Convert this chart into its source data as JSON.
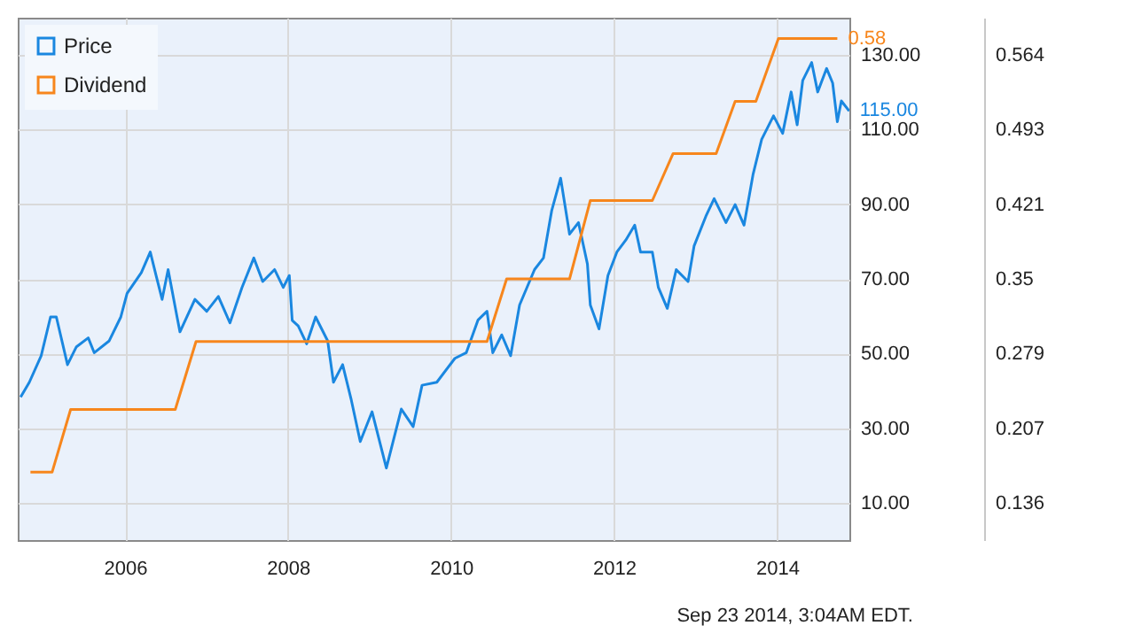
{
  "chart_data": {
    "type": "line",
    "xlim": [
      "2004-09-07",
      "2014-11-21"
    ],
    "xticks": [
      "2006",
      "2008",
      "2010",
      "2012",
      "2014"
    ],
    "ylim": [
      0,
      140
    ],
    "yticks": [
      {
        "value": 10,
        "label": "10.00"
      },
      {
        "value": 30,
        "label": "30.00"
      },
      {
        "value": 50,
        "label": "50.00"
      },
      {
        "value": 70,
        "label": "70.00"
      },
      {
        "value": 90,
        "label": "90.00"
      },
      {
        "value": 110,
        "label": "110.00"
      },
      {
        "value": 130,
        "label": "130.00"
      }
    ],
    "y2lim": [
      0.1,
      0.6
    ],
    "y2ticks": [
      0.136,
      0.207,
      0.279,
      0.35,
      0.421,
      0.493,
      0.564
    ],
    "grid": true,
    "legend": "top left",
    "annotations": [
      "Sep 23 2014, 3:04AM EDT."
    ],
    "series": [
      {
        "name": "Price",
        "color": "#1a87e0",
        "x": [
          "2004-09-20",
          "2004-10-29",
          "2004-12-21",
          "2005-02-01",
          "2005-02-27",
          "2005-04-18",
          "2005-05-28",
          "2005-07-20",
          "2005-08-16",
          "2005-10-22",
          "2005-12-13",
          "2006-01-10",
          "2006-03-15",
          "2006-04-24",
          "2006-05-20",
          "2006-06-16",
          "2006-07-13",
          "2006-08-22",
          "2006-09-04",
          "2006-11-10",
          "2007-01-02",
          "2007-02-23",
          "2007-04-16",
          "2007-06-09",
          "2007-08-01",
          "2007-09-10",
          "2007-11-02",
          "2007-12-11",
          "2008-01-07",
          "2008-01-20",
          "2008-02-16",
          "2008-03-25",
          "2008-05-04",
          "2008-06-27",
          "2008-07-23",
          "2008-09-02",
          "2008-10-11",
          "2008-11-20",
          "2009-01-12",
          "2009-03-17",
          "2009-05-23",
          "2009-07-15",
          "2009-08-24",
          "2009-10-29",
          "2010-01-18",
          "2010-03-10",
          "2010-05-02",
          "2010-06-11",
          "2010-07-07",
          "2010-08-16",
          "2010-09-25",
          "2010-11-04",
          "2011-01-10",
          "2011-02-19",
          "2011-03-28",
          "2011-05-07",
          "2011-06-16",
          "2011-07-26",
          "2011-09-04",
          "2011-09-17",
          "2011-10-26",
          "2011-12-05",
          "2012-01-14",
          "2012-02-23",
          "2012-04-03",
          "2012-04-29",
          "2012-06-21",
          "2012-07-18",
          "2012-08-27",
          "2012-10-06",
          "2012-11-28",
          "2012-12-25",
          "2013-02-16",
          "2013-03-25",
          "2013-05-17",
          "2013-06-27",
          "2013-08-06",
          "2013-09-15",
          "2013-10-24",
          "2013-12-16",
          "2014-01-26",
          "2014-03-05",
          "2014-04-01",
          "2014-04-26",
          "2014-06-05",
          "2014-07-02",
          "2014-08-11",
          "2014-09-07",
          "2014-09-28",
          "2014-10-16",
          "2014-11-20"
        ],
        "values": [
          38.3,
          42.3,
          49.4,
          59.8,
          59.8,
          47,
          51.8,
          54.2,
          50.2,
          53.4,
          59.8,
          66.1,
          71.7,
          77.2,
          70.9,
          64.5,
          72.5,
          59.8,
          55.8,
          64.5,
          61.3,
          65.3,
          58.2,
          67.7,
          75.6,
          69.3,
          72.5,
          67.7,
          70.9,
          58.9,
          57.4,
          52.6,
          59.8,
          53.4,
          42.3,
          47,
          37.5,
          26.4,
          34.4,
          19.3,
          35.1,
          30.4,
          41.5,
          42.3,
          48.7,
          50.2,
          59,
          61.3,
          50.2,
          55,
          49.4,
          63,
          72.5,
          75.6,
          88.3,
          97,
          82,
          85.1,
          74,
          63,
          56.6,
          70.9,
          77.2,
          80.4,
          84.4,
          77.2,
          77.2,
          67.7,
          62.1,
          72.5,
          69.3,
          78.8,
          86.8,
          91.5,
          85.1,
          89.9,
          84.4,
          97.9,
          107.4,
          113.7,
          109,
          120.1,
          111.3,
          123.2,
          128,
          120.1,
          126.4,
          122.5,
          112.1,
          117.7,
          115
        ],
        "value_labels": [
          null,
          null,
          null,
          null,
          null,
          null,
          null,
          null,
          null,
          null,
          null,
          null,
          null,
          null,
          null,
          null,
          null,
          null,
          null,
          null,
          null,
          null,
          null,
          null,
          null,
          null,
          null,
          null,
          null,
          null,
          null,
          null,
          null,
          null,
          null,
          null,
          null,
          null,
          null,
          null,
          null,
          null,
          null,
          null,
          null,
          null,
          null,
          null,
          null,
          null,
          null,
          null,
          null,
          null,
          null,
          null,
          null,
          null,
          null,
          null,
          null,
          null,
          null,
          null,
          null,
          null,
          null,
          null,
          null,
          null,
          null,
          null,
          null,
          null,
          null,
          null,
          null,
          null,
          null,
          null,
          null,
          null,
          null,
          null,
          null,
          null,
          null,
          null,
          null,
          null,
          "115.00"
        ]
      },
      {
        "name": "Dividend",
        "color": "#f7861c",
        "axis": "y2",
        "x": [
          "2004-11-03",
          "2005-02-08",
          "2005-05-02",
          "2006-08-14",
          "2006-11-15",
          "2010-06-11",
          "2010-09-07",
          "2011-06-16",
          "2011-09-17",
          "2012-06-21",
          "2012-09-22",
          "2013-04-03",
          "2013-06-27",
          "2013-09-28",
          "2014-01-07",
          "2014-09-28"
        ],
        "values": [
          0.165,
          0.165,
          0.225,
          0.225,
          0.29,
          0.29,
          0.35,
          0.35,
          0.425,
          0.425,
          0.47,
          0.47,
          0.52,
          0.52,
          0.58,
          0.58
        ],
        "value_labels": [
          null,
          null,
          null,
          null,
          null,
          null,
          null,
          null,
          null,
          null,
          null,
          null,
          null,
          null,
          null,
          "0.58"
        ]
      }
    ]
  }
}
